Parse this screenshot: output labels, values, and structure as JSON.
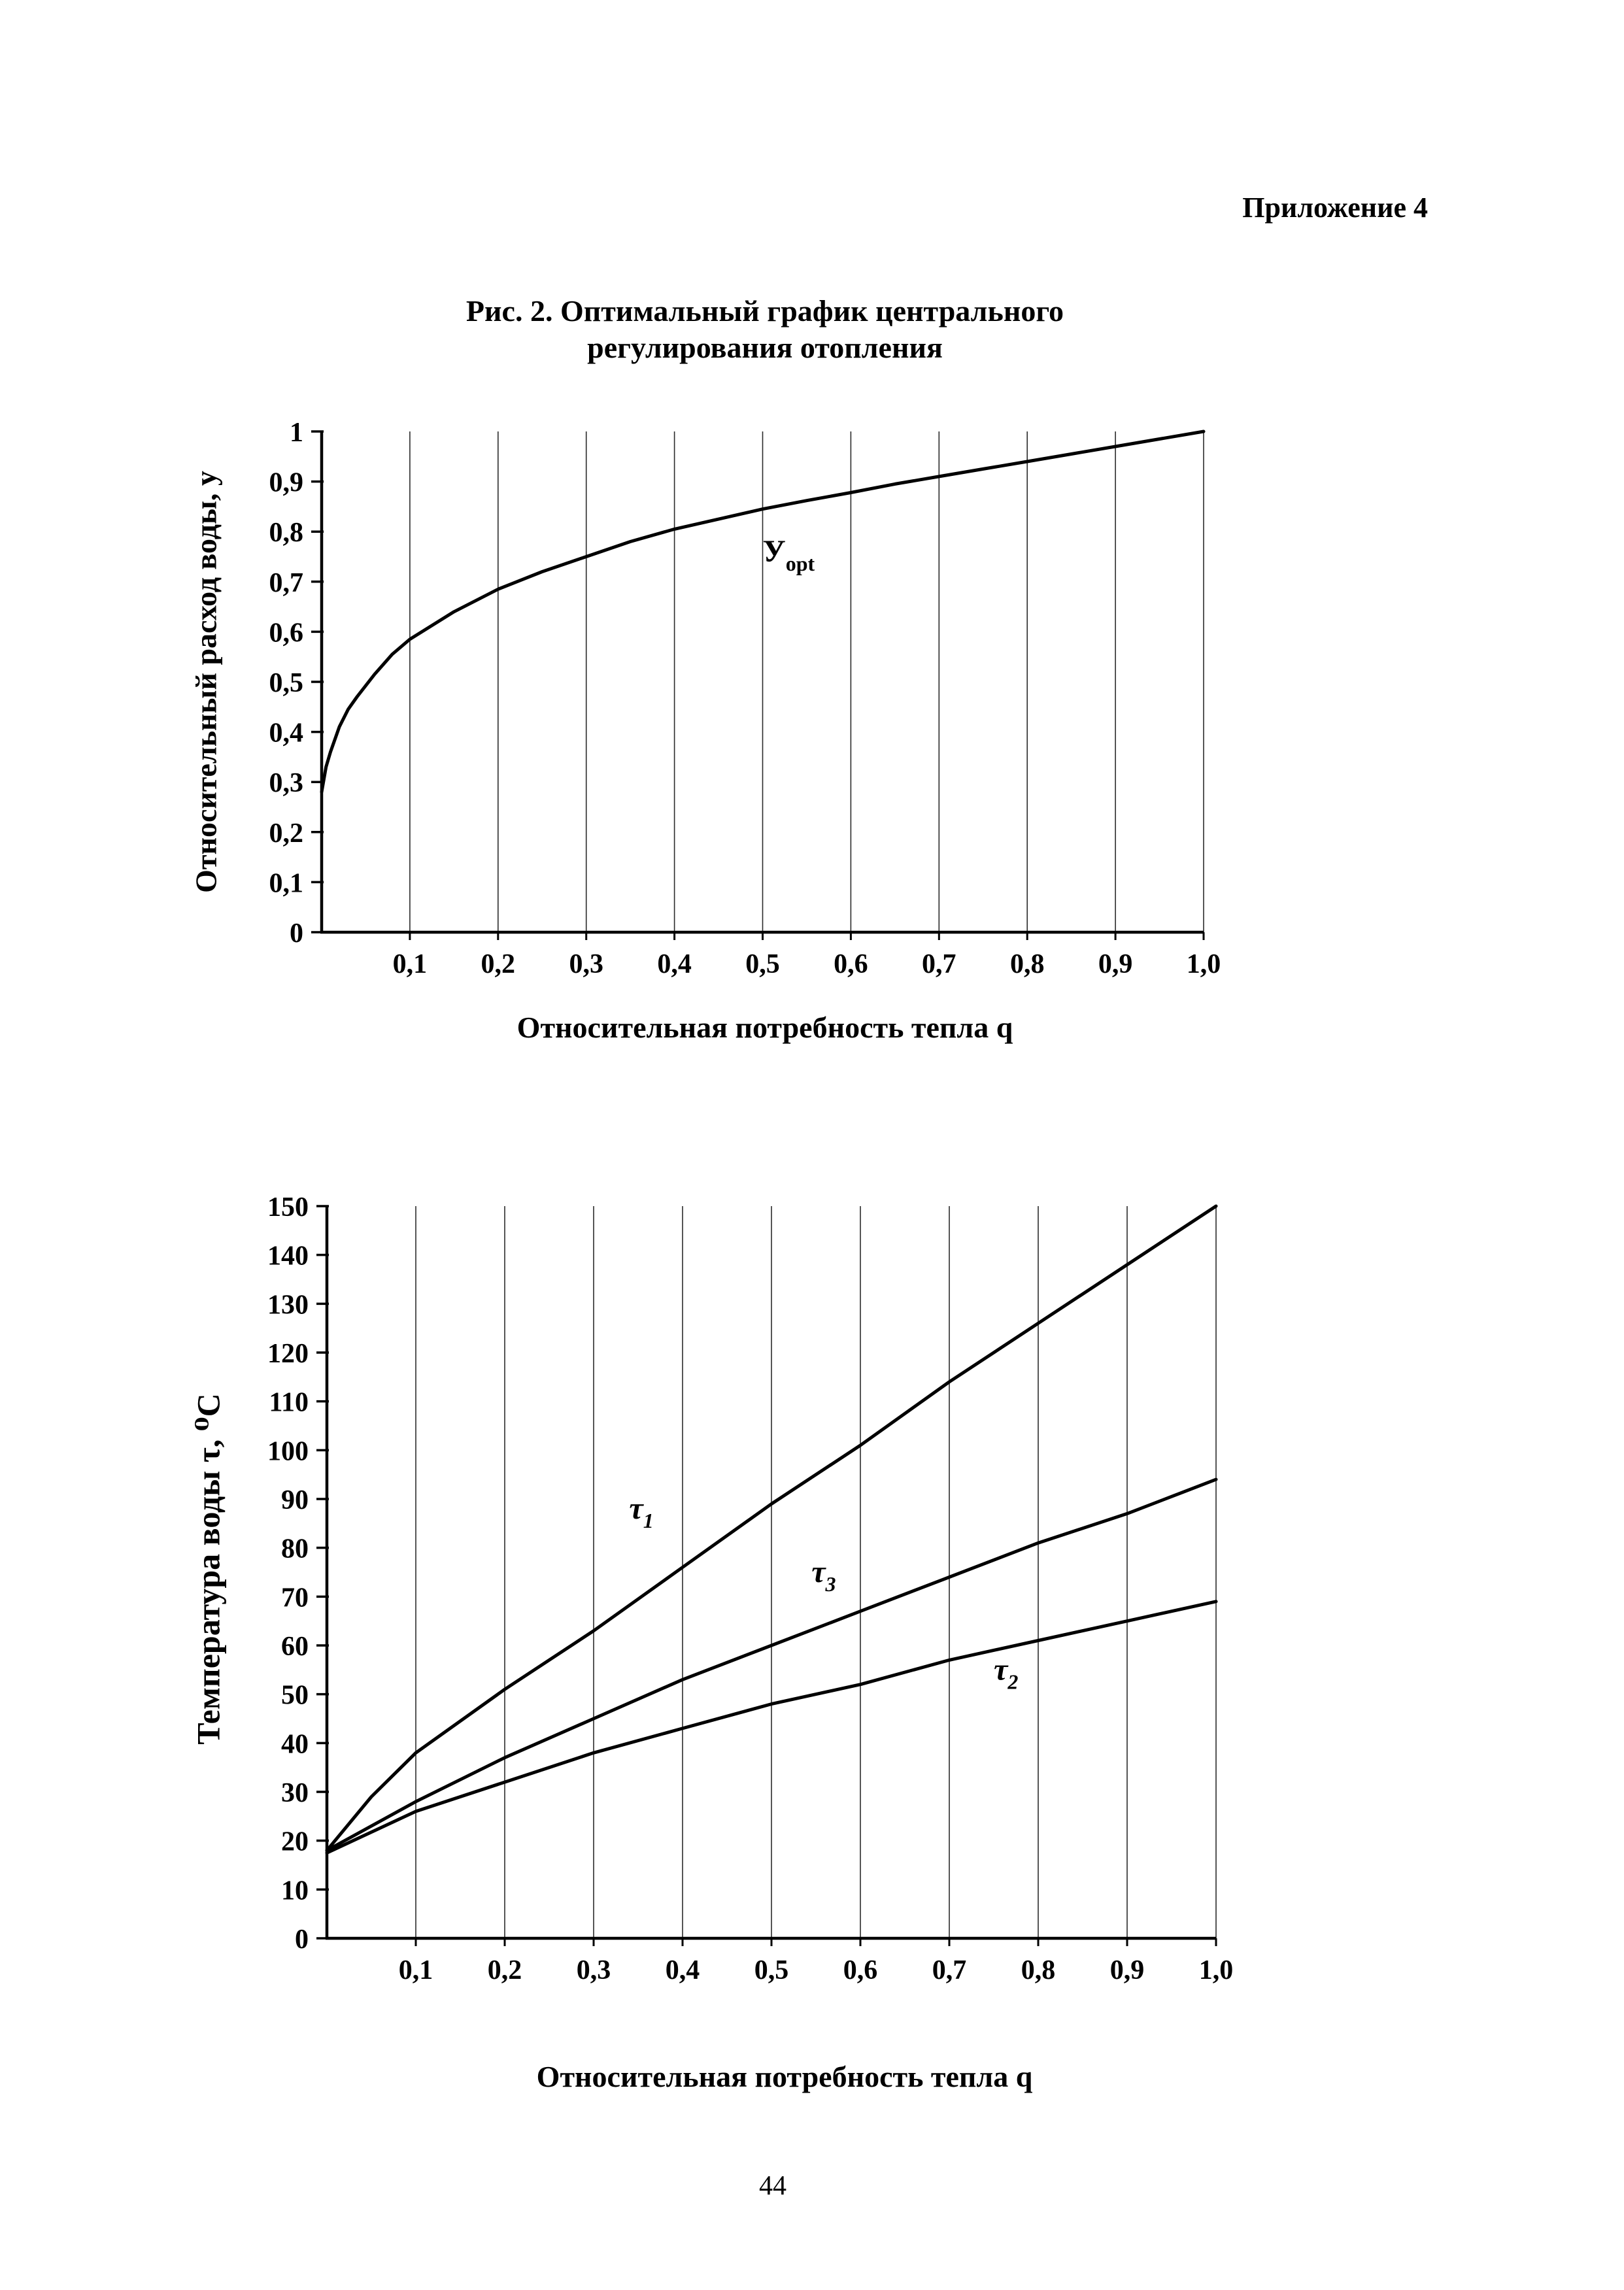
{
  "page": {
    "header": "Приложение 4",
    "title_line1": "Рис. 2. Оптимальный график центрального",
    "title_line2": "регулирования отопления",
    "page_number": "44"
  },
  "chart_data": [
    {
      "type": "line",
      "title": "Рис. 2. Оптимальный график центрального регулирования отопления",
      "xlabel": "Относительная потребность тепла q",
      "ylabel": "Относительный расход воды, у",
      "xlim": [
        0,
        1
      ],
      "ylim": [
        0,
        1
      ],
      "grid": "vertical",
      "legend": "none",
      "x_ticks": [
        {
          "value": 0.1,
          "label": "0,1"
        },
        {
          "value": 0.2,
          "label": "0,2"
        },
        {
          "value": 0.3,
          "label": "0,3"
        },
        {
          "value": 0.4,
          "label": "0,4"
        },
        {
          "value": 0.5,
          "label": "0,5"
        },
        {
          "value": 0.6,
          "label": "0,6"
        },
        {
          "value": 0.7,
          "label": "0,7"
        },
        {
          "value": 0.8,
          "label": "0,8"
        },
        {
          "value": 0.9,
          "label": "0,9"
        },
        {
          "value": 1.0,
          "label": "1,0"
        }
      ],
      "y_ticks": [
        {
          "value": 0,
          "label": "0"
        },
        {
          "value": 0.1,
          "label": "0,1"
        },
        {
          "value": 0.2,
          "label": "0,2"
        },
        {
          "value": 0.3,
          "label": "0,3"
        },
        {
          "value": 0.4,
          "label": "0,4"
        },
        {
          "value": 0.5,
          "label": "0,5"
        },
        {
          "value": 0.6,
          "label": "0,6"
        },
        {
          "value": 0.7,
          "label": "0,7"
        },
        {
          "value": 0.8,
          "label": "0,8"
        },
        {
          "value": 0.9,
          "label": "0,9"
        },
        {
          "value": 1,
          "label": "1"
        }
      ],
      "series": [
        {
          "name": "y-opt",
          "x": [
            0,
            0.005,
            0.01,
            0.02,
            0.03,
            0.04,
            0.06,
            0.08,
            0.1,
            0.15,
            0.2,
            0.25,
            0.3,
            0.35,
            0.4,
            0.45,
            0.5,
            0.55,
            0.6,
            0.65,
            0.7,
            0.75,
            0.8,
            0.85,
            0.9,
            0.95,
            1.0
          ],
          "y": [
            0.28,
            0.33,
            0.36,
            0.41,
            0.445,
            0.47,
            0.515,
            0.555,
            0.585,
            0.64,
            0.685,
            0.72,
            0.75,
            0.78,
            0.805,
            0.825,
            0.845,
            0.862,
            0.878,
            0.895,
            0.91,
            0.925,
            0.94,
            0.955,
            0.97,
            0.985,
            1.0
          ],
          "label": {
            "text": "У",
            "sub": "opt",
            "x": 0.5,
            "y": 0.74,
            "italic": false
          }
        }
      ]
    },
    {
      "type": "line",
      "title": "",
      "xlabel": "Относительная потребность тепла q",
      "ylabel": "Температура воды τ, ⁰С",
      "xlim": [
        0,
        1
      ],
      "ylim": [
        0,
        150
      ],
      "grid": "vertical",
      "legend": "none",
      "x_ticks": [
        {
          "value": 0.1,
          "label": "0,1"
        },
        {
          "value": 0.2,
          "label": "0,2"
        },
        {
          "value": 0.3,
          "label": "0,3"
        },
        {
          "value": 0.4,
          "label": "0,4"
        },
        {
          "value": 0.5,
          "label": "0,5"
        },
        {
          "value": 0.6,
          "label": "0,6"
        },
        {
          "value": 0.7,
          "label": "0,7"
        },
        {
          "value": 0.8,
          "label": "0,8"
        },
        {
          "value": 0.9,
          "label": "0,9"
        },
        {
          "value": 1.0,
          "label": "1,0"
        }
      ],
      "y_ticks": [
        {
          "value": 0,
          "label": "0"
        },
        {
          "value": 10,
          "label": "10"
        },
        {
          "value": 20,
          "label": "20"
        },
        {
          "value": 30,
          "label": "30"
        },
        {
          "value": 40,
          "label": "40"
        },
        {
          "value": 50,
          "label": "50"
        },
        {
          "value": 60,
          "label": "60"
        },
        {
          "value": 70,
          "label": "70"
        },
        {
          "value": 80,
          "label": "80"
        },
        {
          "value": 90,
          "label": "90"
        },
        {
          "value": 100,
          "label": "100"
        },
        {
          "value": 110,
          "label": "110"
        },
        {
          "value": 120,
          "label": "120"
        },
        {
          "value": 130,
          "label": "130"
        },
        {
          "value": 140,
          "label": "140"
        },
        {
          "value": 150,
          "label": "150"
        }
      ],
      "series": [
        {
          "name": "tau1",
          "x": [
            0,
            0.05,
            0.1,
            0.2,
            0.3,
            0.4,
            0.5,
            0.6,
            0.7,
            0.8,
            0.9,
            1.0
          ],
          "y": [
            18,
            29,
            38,
            51,
            63,
            76,
            89,
            101,
            114,
            126,
            138,
            150
          ],
          "label": {
            "text": "τ",
            "sub": "1",
            "x": 0.34,
            "y": 86,
            "italic": true
          }
        },
        {
          "name": "tau3",
          "x": [
            0,
            0.1,
            0.2,
            0.3,
            0.4,
            0.5,
            0.6,
            0.7,
            0.8,
            0.9,
            1.0
          ],
          "y": [
            18,
            28,
            37,
            45,
            53,
            60,
            67,
            74,
            81,
            87,
            94
          ],
          "label": {
            "text": "τ",
            "sub": "3",
            "x": 0.545,
            "y": 73,
            "italic": true
          }
        },
        {
          "name": "tau2",
          "x": [
            0,
            0.1,
            0.2,
            0.3,
            0.4,
            0.5,
            0.6,
            0.7,
            0.8,
            0.9,
            1.0
          ],
          "y": [
            17.5,
            26,
            32,
            38,
            43,
            48,
            52,
            57,
            61,
            65,
            69
          ],
          "label": {
            "text": "τ",
            "sub": "2",
            "x": 0.75,
            "y": 53,
            "italic": true
          }
        }
      ]
    }
  ]
}
